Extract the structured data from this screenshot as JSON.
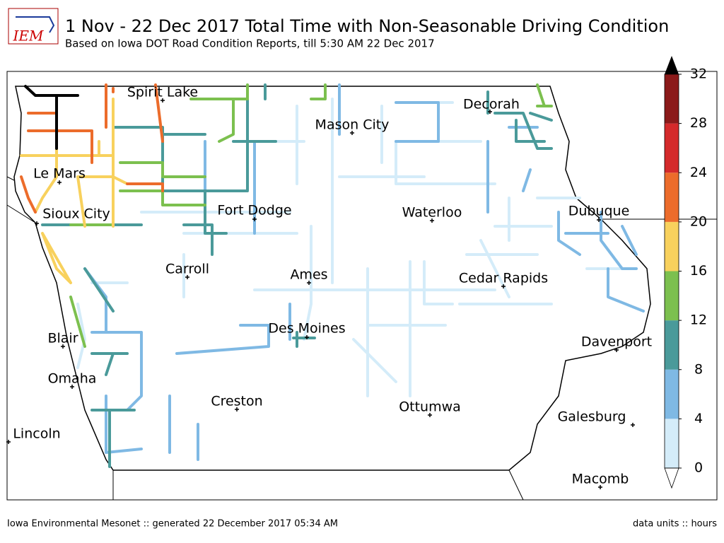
{
  "header": {
    "logo": "IEM",
    "title": "1 Nov - 22 Dec 2017 Total Time with Non-Seasonable Driving Condition",
    "subtitle": "Based on Iowa DOT Road Condition Reports, till 5:30 AM 22 Dec 2017"
  },
  "map": {
    "cities": [
      "Spirit Lake",
      "Decorah",
      "Mason City",
      "Le Mars",
      "Sioux City",
      "Fort Dodge",
      "Waterloo",
      "Dubuque",
      "Carroll",
      "Ames",
      "Cedar Rapids",
      "Des Moines",
      "Blair",
      "Davenport",
      "Omaha",
      "Creston",
      "Ottumwa",
      "Galesburg",
      "Lincoln",
      "Macomb"
    ]
  },
  "colorbar": {
    "ticks": [
      0,
      4,
      8,
      12,
      16,
      20,
      24,
      28,
      32
    ],
    "colors": [
      "#d4ecf9",
      "#7fb9e4",
      "#4a9a9a",
      "#7cc04f",
      "#f8d15d",
      "#ec6c2b",
      "#d42a2b",
      "#8b1a1a"
    ],
    "over_color": "#000000"
  },
  "footer": {
    "left": "Iowa Environmental Mesonet :: generated 22 December 2017 05:34 AM",
    "right": "data units :: hours"
  }
}
